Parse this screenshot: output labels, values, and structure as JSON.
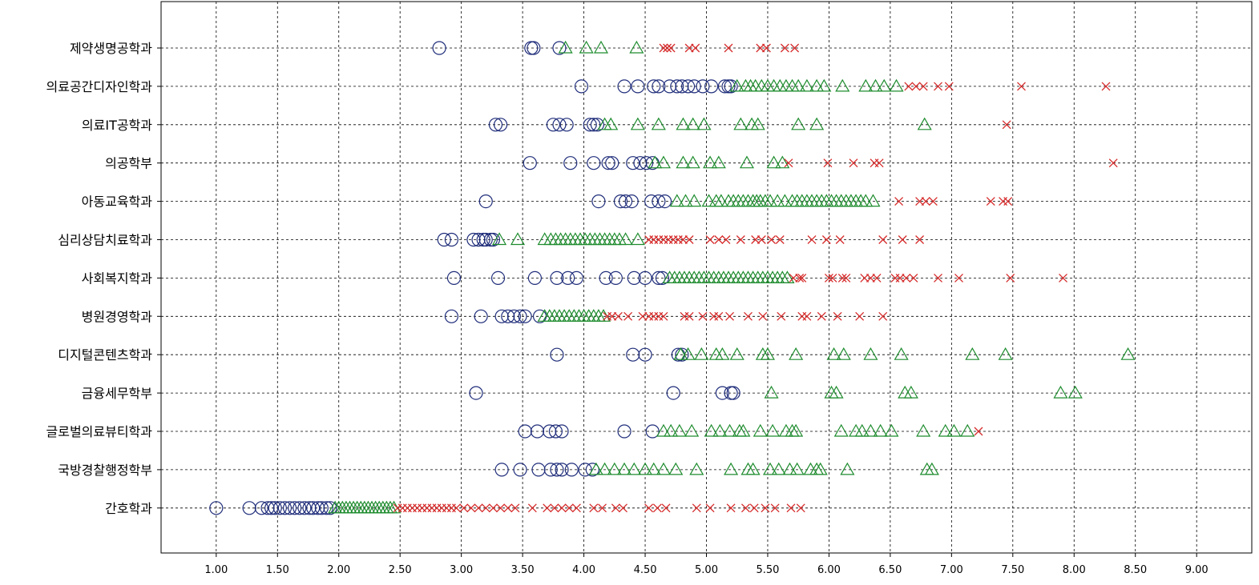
{
  "chart_data": {
    "type": "scatter",
    "title": "",
    "xlabel": "",
    "ylabel": "",
    "xlim": [
      0.55,
      9.45
    ],
    "x_ticks": [
      "1.00",
      "1.50",
      "2.00",
      "2.50",
      "3.00",
      "3.50",
      "4.00",
      "4.50",
      "5.00",
      "5.50",
      "6.00",
      "6.50",
      "7.00",
      "7.50",
      "8.00",
      "8.50",
      "9.00"
    ],
    "grid": true,
    "legend": "none",
    "colors": {
      "circle": "#1f2d7a",
      "triangle": "#1e8c2e",
      "cross": "#d62b2b",
      "grid": "#000000"
    },
    "categories": [
      "제약생명공학과",
      "의료공간디자인학과",
      "의료IT공학과",
      "의공학부",
      "아동교육학과",
      "심리상담치료학과",
      "사회복지학과",
      "병원경영학과",
      "디지털콘텐츠학과",
      "금융세무학부",
      "글로벌의료뷰티학과",
      "국방경찰행정학부",
      "간호학과"
    ],
    "series": [
      {
        "marker": "circle",
        "values": [
          [
            2.82,
            3.57,
            3.59,
            3.8
          ],
          [
            3.98,
            4.33,
            4.44,
            4.57,
            4.61,
            4.7,
            4.76,
            4.8,
            4.85,
            4.9,
            4.97,
            5.04,
            5.15,
            5.18,
            5.2
          ],
          [
            3.28,
            3.32,
            3.75,
            3.8,
            3.86,
            4.05,
            4.08,
            4.11
          ],
          [
            3.56,
            3.89,
            4.08,
            4.2,
            4.23,
            4.4,
            4.46,
            4.51,
            4.56
          ],
          [
            3.2,
            4.12,
            4.3,
            4.34,
            4.39,
            4.55,
            4.61,
            4.66
          ],
          [
            2.86,
            2.92,
            3.1,
            3.14,
            3.18,
            3.2,
            3.24,
            3.26
          ],
          [
            2.94,
            3.3,
            3.6,
            3.78,
            3.87,
            3.94,
            4.18,
            4.26,
            4.41,
            4.5,
            4.61,
            4.64
          ],
          [
            2.92,
            3.16,
            3.33,
            3.38,
            3.43,
            3.48,
            3.52,
            3.64
          ],
          [
            3.78,
            4.4,
            4.5,
            4.77,
            4.8
          ],
          [
            3.12,
            4.73,
            5.13,
            5.2,
            5.22
          ],
          [
            3.52,
            3.62,
            3.72,
            3.77,
            3.82,
            4.33,
            4.56
          ],
          [
            3.33,
            3.48,
            3.63,
            3.73,
            3.78,
            3.82,
            3.9,
            4.01,
            4.07
          ],
          [
            1.0,
            1.27,
            1.37,
            1.42,
            1.45,
            1.48,
            1.52,
            1.56,
            1.6,
            1.64,
            1.68,
            1.72,
            1.76,
            1.79,
            1.83,
            1.86,
            1.9,
            1.93
          ]
        ]
      },
      {
        "marker": "triangle",
        "values": [
          [
            3.85,
            4.02,
            4.14,
            4.43
          ],
          [
            5.25,
            5.32,
            5.36,
            5.4,
            5.45,
            5.5,
            5.55,
            5.6,
            5.65,
            5.7,
            5.75,
            5.82,
            5.9,
            5.96,
            6.11,
            6.3,
            6.38,
            6.45,
            6.55
          ],
          [
            4.17,
            4.22,
            4.44,
            4.61,
            4.81,
            4.89,
            4.98,
            5.28,
            5.37,
            5.42,
            5.75,
            5.9,
            6.78
          ],
          [
            4.58,
            4.65,
            4.81,
            4.89,
            5.03,
            5.1,
            5.33,
            5.55,
            5.62
          ],
          [
            4.76,
            4.83,
            4.9,
            5.02,
            5.08,
            5.12,
            5.18,
            5.22,
            5.26,
            5.3,
            5.34,
            5.38,
            5.41,
            5.44,
            5.48,
            5.52,
            5.58,
            5.64,
            5.7,
            5.74,
            5.78,
            5.82,
            5.86,
            5.9,
            5.94,
            5.98,
            6.02,
            6.06,
            6.1,
            6.14,
            6.18,
            6.22,
            6.26,
            6.3,
            6.36
          ],
          [
            3.31,
            3.46,
            3.68,
            3.73,
            3.77,
            3.81,
            3.85,
            3.89,
            3.93,
            3.97,
            4.01,
            4.05,
            4.09,
            4.13,
            4.17,
            4.21,
            4.25,
            4.29,
            4.34,
            4.44
          ],
          [
            4.7,
            4.74,
            4.78,
            4.82,
            4.86,
            4.9,
            4.94,
            4.98,
            5.02,
            5.06,
            5.1,
            5.14,
            5.18,
            5.22,
            5.26,
            5.3,
            5.34,
            5.38,
            5.42,
            5.46,
            5.5,
            5.54,
            5.58,
            5.62,
            5.66
          ],
          [
            3.68,
            3.72,
            3.76,
            3.8,
            3.84,
            3.88,
            3.92,
            3.96,
            4.0,
            4.04,
            4.08,
            4.12,
            4.16
          ],
          [
            4.79,
            4.85,
            4.96,
            5.08,
            5.13,
            5.25,
            5.46,
            5.5,
            5.73,
            6.04,
            6.12,
            6.34,
            6.59,
            7.17,
            7.44,
            8.44
          ],
          [
            5.53,
            6.02,
            6.06,
            6.62,
            6.67,
            7.89,
            8.01
          ],
          [
            4.65,
            4.71,
            4.78,
            4.88,
            5.04,
            5.11,
            5.19,
            5.27,
            5.3,
            5.44,
            5.54,
            5.65,
            5.7,
            5.73,
            6.1,
            6.22,
            6.27,
            6.34,
            6.42,
            6.51,
            6.77,
            6.95,
            7.02,
            7.13
          ],
          [
            4.1,
            4.17,
            4.25,
            4.33,
            4.41,
            4.5,
            4.57,
            4.65,
            4.75,
            4.92,
            5.2,
            5.34,
            5.38,
            5.52,
            5.59,
            5.68,
            5.74,
            5.85,
            5.9,
            5.93,
            6.15,
            6.8,
            6.84
          ],
          [
            1.97,
            2.0,
            2.03,
            2.06,
            2.09,
            2.12,
            2.15,
            2.18,
            2.21,
            2.24,
            2.27,
            2.3,
            2.33,
            2.36,
            2.39,
            2.42,
            2.45
          ]
        ]
      },
      {
        "marker": "cross",
        "values": [
          [
            4.65,
            4.68,
            4.71,
            4.86,
            4.91,
            5.18,
            5.44,
            5.49,
            5.64,
            5.72
          ],
          [
            6.65,
            6.71,
            6.77,
            6.89,
            6.98,
            7.57,
            8.26
          ],
          [
            7.45
          ],
          [
            5.67,
            5.99,
            6.2,
            6.37,
            6.41,
            8.32
          ],
          [
            6.57,
            6.74,
            6.79,
            6.85,
            7.32,
            7.42,
            7.46
          ],
          [
            4.53,
            4.57,
            4.61,
            4.65,
            4.69,
            4.73,
            4.77,
            4.81,
            4.86,
            5.03,
            5.1,
            5.16,
            5.28,
            5.4,
            5.45,
            5.53,
            5.6,
            5.86,
            5.98,
            6.09,
            6.44,
            6.6,
            6.74
          ],
          [
            5.71,
            5.76,
            5.78,
            6.0,
            6.03,
            6.11,
            6.14,
            6.29,
            6.34,
            6.39,
            6.54,
            6.58,
            6.63,
            6.69,
            6.89,
            7.06,
            7.48,
            7.91
          ],
          [
            4.19,
            4.23,
            4.28,
            4.36,
            4.48,
            4.53,
            4.57,
            4.61,
            4.65,
            4.82,
            4.86,
            4.97,
            5.06,
            5.1,
            5.19,
            5.34,
            5.46,
            5.61,
            5.78,
            5.82,
            5.94,
            6.07,
            6.25,
            6.44
          ],
          [],
          [],
          [
            7.22
          ],
          [],
          [
            2.48,
            2.52,
            2.56,
            2.6,
            2.64,
            2.68,
            2.72,
            2.76,
            2.8,
            2.84,
            2.88,
            2.92,
            2.96,
            3.02,
            3.08,
            3.14,
            3.2,
            3.26,
            3.32,
            3.38,
            3.44,
            3.58,
            3.7,
            3.76,
            3.82,
            3.88,
            3.94,
            4.08,
            4.15,
            4.26,
            4.32,
            4.53,
            4.6,
            4.67,
            4.92,
            5.03,
            5.2,
            5.32,
            5.39,
            5.48,
            5.56,
            5.69,
            5.77
          ]
        ]
      }
    ]
  }
}
